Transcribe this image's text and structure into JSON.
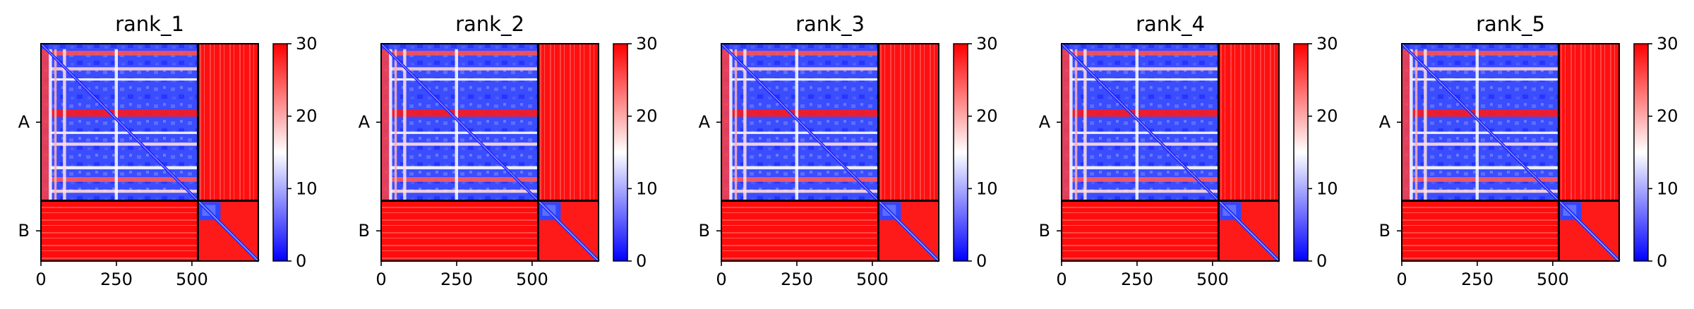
{
  "chart_data": {
    "type": "heatmap",
    "colorbar": {
      "ticks": [
        0,
        10,
        20,
        30
      ],
      "range": [
        0,
        30
      ],
      "colormap": [
        "#0000ff",
        "#ffffff",
        "#ff0000"
      ]
    },
    "xlim": [
      0,
      720
    ],
    "x_ticks": [
      0,
      250,
      500
    ],
    "chain_boundary": 520,
    "y_ticks": [
      "A",
      "B"
    ],
    "panels": [
      {
        "title": "rank_1"
      },
      {
        "title": "rank_2"
      },
      {
        "title": "rank_3"
      },
      {
        "title": "rank_4"
      },
      {
        "title": "rank_5"
      }
    ]
  }
}
